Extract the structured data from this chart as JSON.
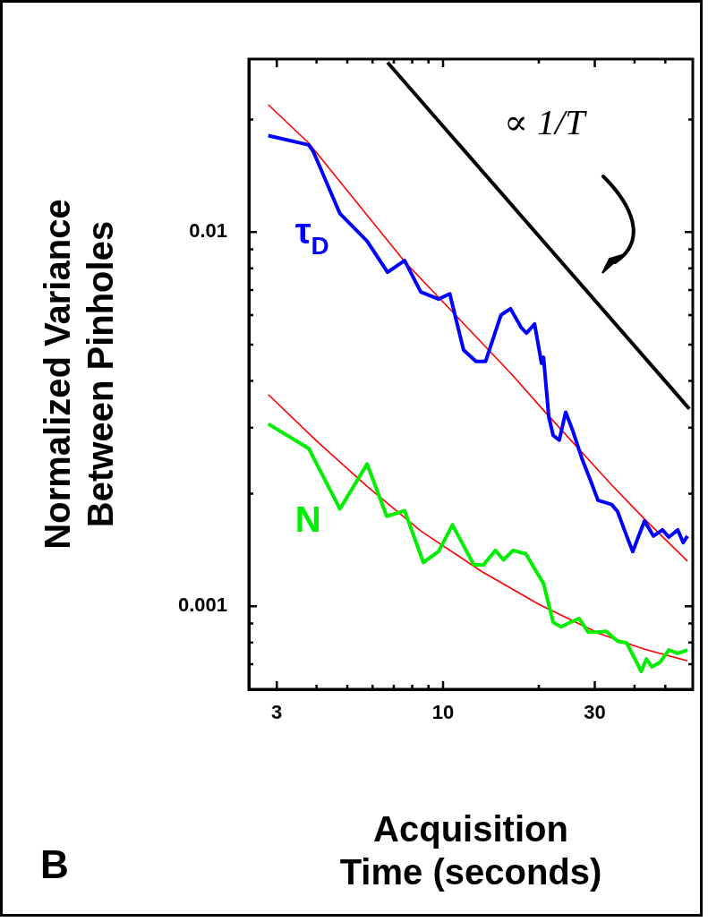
{
  "chart_data": {
    "type": "line",
    "xlabel": "Acquisition\nTime (seconds)",
    "ylabel": "Normalized Variance\nBetween Pinholes",
    "log": "xy",
    "grid": false,
    "legend": false,
    "marker": "none",
    "line_style": "solid",
    "xlim": [
      2.45,
      61
    ],
    "ylim": [
      0.00061,
      0.029
    ],
    "xticks": [
      3,
      {
        "value": 4,
        "label": null
      },
      {
        "value": 5,
        "label": null
      },
      {
        "value": 6,
        "label": null
      },
      {
        "value": 7,
        "label": null
      },
      {
        "value": 8,
        "label": null
      },
      {
        "value": 9,
        "label": null
      },
      10,
      {
        "value": 20,
        "label": null
      },
      30,
      {
        "value": 40,
        "label": null
      },
      {
        "value": 50,
        "label": null
      }
    ],
    "yticks": [
      {
        "value": 0.0007,
        "label": null
      },
      {
        "value": 0.0008,
        "label": null
      },
      {
        "value": 0.0009,
        "label": null
      },
      0.001,
      {
        "value": 0.002,
        "label": null
      },
      {
        "value": 0.003,
        "label": null
      },
      {
        "value": 0.004,
        "label": null
      },
      {
        "value": 0.005,
        "label": null
      },
      {
        "value": 0.006,
        "label": null
      },
      {
        "value": 0.007,
        "label": null
      },
      {
        "value": 0.008,
        "label": null
      },
      {
        "value": 0.009,
        "label": null
      },
      0.01,
      {
        "value": 0.02,
        "label": null
      }
    ],
    "series": [
      {
        "name": "τ$_{D}$",
        "color": "#0000ff",
        "x": [
          2.82,
          3.78,
          3.91,
          4.74,
          5.77,
          6.69,
          7.57,
          8.51,
          9.68,
          10.5,
          11.6,
          12.7,
          13.6,
          15.2,
          16.3,
          17.6,
          18.3,
          19.4,
          20.4,
          20.7,
          21.5,
          22.2,
          23.2,
          24.3,
          25.6,
          27.3,
          29.2,
          30.7,
          33.9,
          35.4,
          37.8,
          39.5,
          41.1,
          43.0,
          45.9,
          49.0,
          51.3,
          54.7,
          56.9,
          58.7
        ],
        "values": [
          0.0181,
          0.0171,
          0.0164,
          0.0112,
          0.00946,
          0.00781,
          0.00839,
          0.00692,
          0.00662,
          0.00684,
          0.00484,
          0.00451,
          0.00451,
          0.006,
          0.00624,
          0.00556,
          0.00537,
          0.00568,
          0.00446,
          0.00463,
          0.00321,
          0.00286,
          0.00278,
          0.0033,
          0.00294,
          0.00249,
          0.00215,
          0.00192,
          0.00187,
          0.00179,
          0.00154,
          0.0014,
          0.00153,
          0.00169,
          0.00154,
          0.0016,
          0.00153,
          0.0016,
          0.00148,
          0.00154
        ]
      },
      {
        "name": "N",
        "color": "#00ee00",
        "x": [
          2.82,
          3.78,
          4.74,
          5.77,
          6.65,
          7.57,
          8.67,
          9.68,
          10.7,
          12.5,
          13.4,
          14.6,
          15.5,
          16.6,
          18.2,
          20.7,
          22.2,
          23.5,
          24.8,
          26.8,
          28.6,
          30.5,
          32.6,
          35.4,
          37.8,
          42.0,
          43.6,
          45.3,
          48.1,
          51.3,
          54.7,
          58.7
        ],
        "values": [
          0.00307,
          0.00264,
          0.00182,
          0.0024,
          0.00174,
          0.0018,
          0.00131,
          0.0014,
          0.00165,
          0.00129,
          0.00129,
          0.00141,
          0.00133,
          0.00141,
          0.00138,
          0.00115,
          0.000906,
          0.000881,
          0.000901,
          0.000927,
          0.000853,
          0.000853,
          0.000857,
          0.000807,
          0.000798,
          0.00067,
          0.000723,
          0.000689,
          0.000708,
          0.000764,
          0.000748,
          0.000764
        ]
      },
      {
        "color": "#ff0000",
        "x": [
          2.82,
          3.78,
          7.57,
          16.3,
          21.1,
          33.9,
          43.0,
          58.7
        ],
        "values": [
          0.0219,
          0.0173,
          0.00834,
          0.0042,
          0.00328,
          0.00211,
          0.00171,
          0.00132
        ]
      },
      {
        "color": "#ff0000",
        "x": [
          2.82,
          4.03,
          5.77,
          8.51,
          13.2,
          20.1,
          31.1,
          43.0,
          58.7
        ],
        "values": [
          0.00368,
          0.00275,
          0.00209,
          0.00159,
          0.00124,
          0.00101,
          0.000844,
          0.000768,
          0.000715
        ]
      },
      {
        "color": "#000000",
        "x": [
          6.69,
          59.5
        ],
        "values": [
          0.0284,
          0.00337
        ]
      }
    ],
    "annotations": [
      "∝ 1/T",
      "B"
    ]
  }
}
